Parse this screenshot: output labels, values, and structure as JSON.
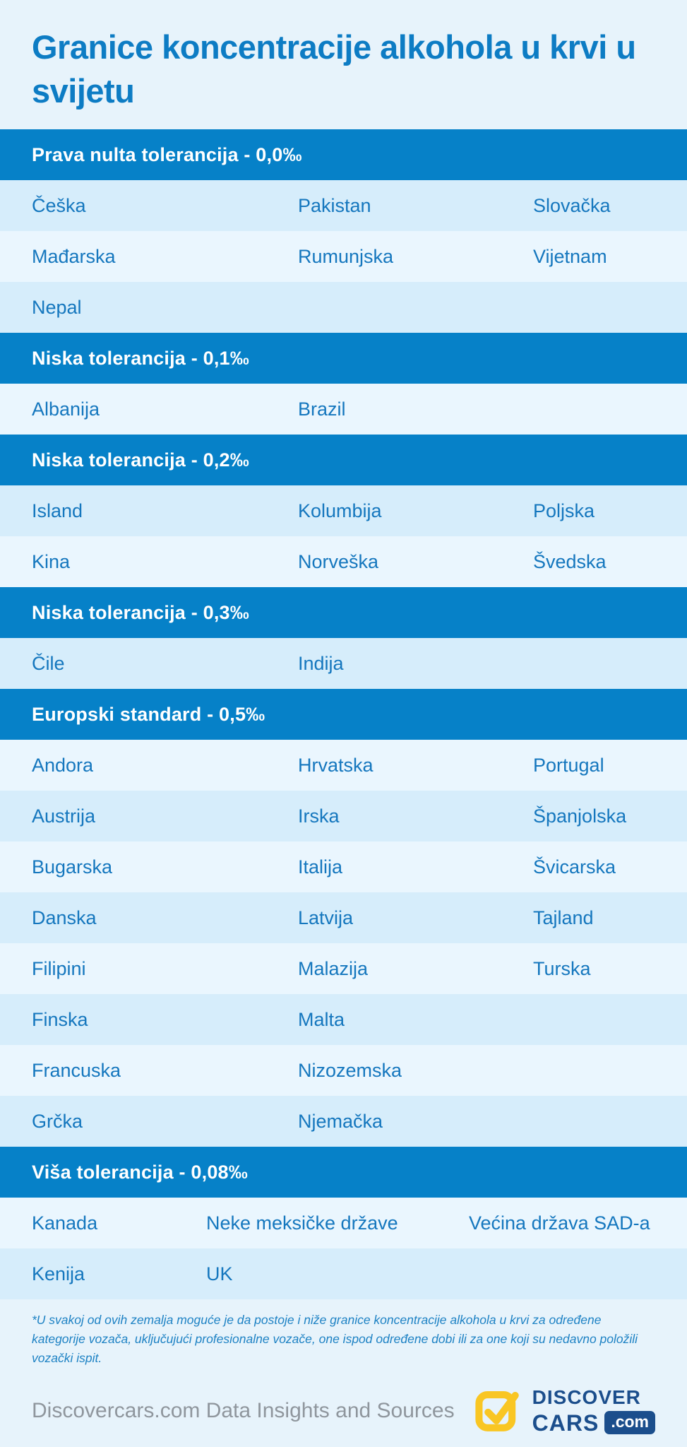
{
  "page": {
    "title": "Granice koncentracije alkohola u krvi u svijetu",
    "footnote": "*U svakoj od ovih zemalja moguće je da postoje i niže granice koncentracije alkohola u krvi za određene kategorije vozača, uključujući profesionalne vozače, one ispod određene dobi ili za one koji su nedavno položili vozački ispit.",
    "footer_source": "Discovercars.com Data Insights and Sources"
  },
  "colors": {
    "page_bg": "#E7F3FB",
    "bar_blue": "#0681C8",
    "row_dark": "#D6EDFB",
    "row_light": "#EAF6FE",
    "title_blue": "#0D7CC4",
    "text_blue": "#1577BE",
    "footnote_blue": "#1E82C4",
    "source_gray": "#8F969D",
    "logo_navy": "#1B4E8C",
    "logo_yellow": "#F9C623"
  },
  "sections": [
    {
      "label": "Prava nulta tolerancija - 0,0‰",
      "column_layout": "standard",
      "rows": [
        [
          "Češka",
          "Pakistan",
          "Slovačka"
        ],
        [
          "Mađarska",
          "Rumunjska",
          "Vijetnam"
        ],
        [
          "Nepal"
        ]
      ]
    },
    {
      "label": "Niska tolerancija - 0,1‰",
      "column_layout": "standard",
      "rows": [
        [
          "Albanija",
          "Brazil"
        ]
      ]
    },
    {
      "label": "Niska tolerancija - 0,2‰",
      "column_layout": "standard",
      "rows": [
        [
          "Island",
          "Kolumbija",
          "Poljska"
        ],
        [
          "Kina",
          "Norveška",
          "Švedska"
        ]
      ]
    },
    {
      "label": "Niska tolerancija - 0,3‰",
      "column_layout": "standard",
      "rows": [
        [
          "Čile",
          "Indija"
        ]
      ]
    },
    {
      "label": "Europski standard - 0,5‰",
      "column_layout": "standard",
      "rows": [
        [
          "Andora",
          "Hrvatska",
          "Portugal"
        ],
        [
          "Austrija",
          "Irska",
          "Španjolska"
        ],
        [
          "Bugarska",
          "Italija",
          "Švicarska"
        ],
        [
          "Danska",
          "Latvija",
          "Tajland"
        ],
        [
          "Filipini",
          "Malazija",
          "Turska"
        ],
        [
          "Finska",
          "Malta"
        ],
        [
          "Francuska",
          "Nizozemska"
        ],
        [
          "Grčka",
          "Njemačka"
        ]
      ]
    },
    {
      "label": "Viša tolerancija - 0,08‰",
      "column_layout": "wide",
      "rows": [
        [
          "Kanada",
          "Neke meksičke države",
          "Većina država SAD-a"
        ],
        [
          "Kenija",
          "UK"
        ]
      ]
    }
  ],
  "logo": {
    "check_icon": "check-icon",
    "brand_line1": "DISCOVER",
    "brand_line2": "CARS",
    "domain_badge": ".com"
  },
  "chart_data": {
    "type": "table",
    "title": "Granice koncentracije alkohola u krvi u svijetu",
    "groups": [
      {
        "limit_label": "Prava nulta tolerancija - 0,0‰",
        "limit_permille": 0.0,
        "countries": [
          "Češka",
          "Pakistan",
          "Slovačka",
          "Mađarska",
          "Rumunjska",
          "Vijetnam",
          "Nepal"
        ]
      },
      {
        "limit_label": "Niska tolerancija - 0,1‰",
        "limit_permille": 0.1,
        "countries": [
          "Albanija",
          "Brazil"
        ]
      },
      {
        "limit_label": "Niska tolerancija - 0,2‰",
        "limit_permille": 0.2,
        "countries": [
          "Island",
          "Kolumbija",
          "Poljska",
          "Kina",
          "Norveška",
          "Švedska"
        ]
      },
      {
        "limit_label": "Niska tolerancija - 0,3‰",
        "limit_permille": 0.3,
        "countries": [
          "Čile",
          "Indija"
        ]
      },
      {
        "limit_label": "Europski standard - 0,5‰",
        "limit_permille": 0.5,
        "countries": [
          "Andora",
          "Hrvatska",
          "Portugal",
          "Austrija",
          "Irska",
          "Španjolska",
          "Bugarska",
          "Italija",
          "Švicarska",
          "Danska",
          "Latvija",
          "Tajland",
          "Filipini",
          "Malazija",
          "Turska",
          "Finska",
          "Malta",
          "Francuska",
          "Nizozemska",
          "Grčka",
          "Njemačka"
        ]
      },
      {
        "limit_label": "Viša tolerancija - 0,08‰",
        "limit_permille": 0.08,
        "countries": [
          "Kanada",
          "Neke meksičke države",
          "Većina država SAD-a",
          "Kenija",
          "UK"
        ]
      }
    ]
  }
}
